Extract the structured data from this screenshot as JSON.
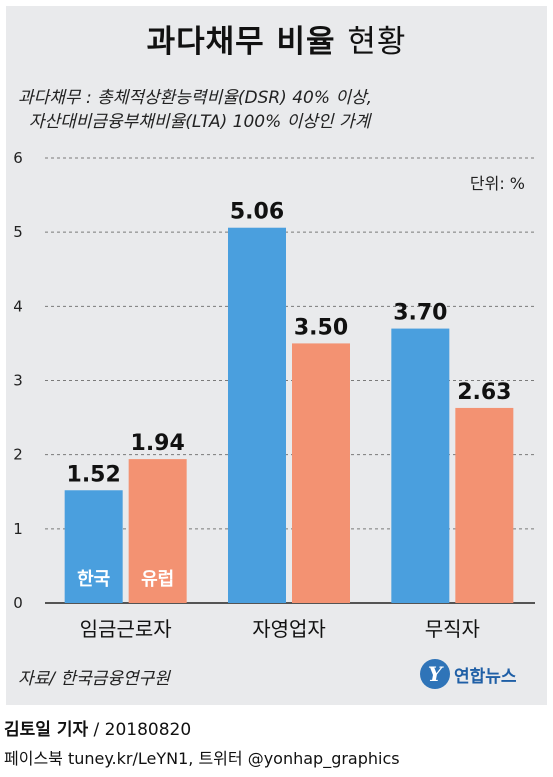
{
  "header": {
    "title_bold": "과다채무 비율",
    "title_light": "현황",
    "subtitle_line1": "과다채무 : 총체적상환능력비율(DSR) 40% 이상,",
    "subtitle_line2": "자산대비금융부채비율(LTA) 100% 이상인 가계",
    "unit": "단위: %"
  },
  "chart_data": {
    "type": "bar",
    "categories": [
      "임금근로자",
      "자영업자",
      "무직자"
    ],
    "series": [
      {
        "name": "한국",
        "values": [
          1.52,
          5.06,
          3.7
        ],
        "labels": [
          "1.52",
          "5.06",
          "3.70"
        ]
      },
      {
        "name": "유럽",
        "values": [
          1.94,
          3.5,
          2.63
        ],
        "labels": [
          "1.94",
          "3.50",
          "2.63"
        ]
      }
    ],
    "ylim": [
      0,
      6
    ],
    "yticks": [
      "0",
      "1",
      "2",
      "3",
      "4",
      "5",
      "6"
    ],
    "grid": true,
    "legend": "inside-first-group-bars"
  },
  "colors": {
    "korea": "#4a9fde",
    "europe": "#f39272",
    "grid": "#7a7a7a",
    "background": "#e9eaec"
  },
  "footer": {
    "source": "자료/ 한국금융연구원",
    "logo_mark": "Y",
    "logo_text": "연합뉴스",
    "reporter_name": "김토일 기자",
    "reporter_date": " / 20180820",
    "social": "페이스북 tuney.kr/LeYN1, 트위터 @yonhap_graphics"
  }
}
